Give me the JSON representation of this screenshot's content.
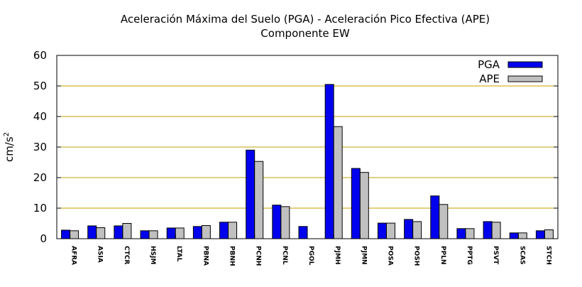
{
  "chart_data": {
    "type": "bar",
    "title_line1": "Aceleración Máxima del Suelo (PGA) -  Aceleración Pico Efectiva (APE)",
    "title_line2": "Componente EW",
    "ylabel_base": "cm/s",
    "ylabel_sup": "2",
    "xlabel": "",
    "ylim": [
      0,
      60
    ],
    "yticks": [
      0,
      10,
      20,
      30,
      40,
      50,
      60
    ],
    "grid": true,
    "legend_position": "top-right",
    "categories": [
      "AFRA",
      "ASIA",
      "CTCR",
      "HSJM",
      "LTAL",
      "PBNA",
      "PBNH",
      "PCNH",
      "PCNL",
      "PGOL",
      "PJMH",
      "PJMN",
      "POSA",
      "POSH",
      "PPLN",
      "PPTG",
      "PSVT",
      "SCAS",
      "STCH"
    ],
    "series": [
      {
        "name": "PGA",
        "color": "#0000ee",
        "values": [
          2.8,
          4.2,
          4.2,
          2.6,
          3.5,
          4.0,
          5.4,
          29.0,
          11.0,
          4.0,
          50.5,
          23.0,
          5.1,
          6.3,
          14.0,
          3.3,
          5.6,
          1.9,
          2.6
        ]
      },
      {
        "name": "APE",
        "color": "#c0c0c0",
        "values": [
          2.6,
          3.6,
          5.0,
          2.6,
          3.5,
          4.3,
          5.4,
          25.3,
          10.5,
          null,
          36.7,
          21.7,
          5.1,
          5.6,
          11.2,
          3.3,
          5.4,
          1.9,
          2.9
        ]
      }
    ]
  }
}
